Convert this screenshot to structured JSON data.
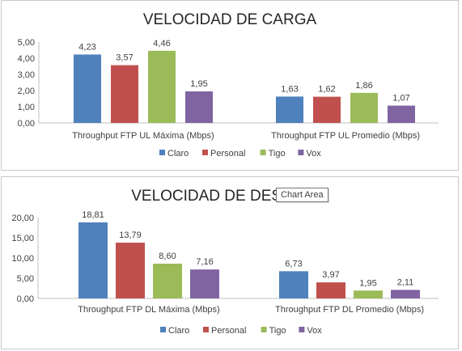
{
  "chart_data": [
    {
      "type": "bar",
      "title": "VELOCIDAD DE CARGA",
      "categories": [
        "Throughput FTP UL Máxima (Mbps)",
        "Throughput FTP UL Promedio (Mbps)"
      ],
      "series": [
        {
          "name": "Claro",
          "values": [
            4.23,
            1.63
          ],
          "labels": [
            "4,23",
            "1,63"
          ],
          "color": "#4f81bd"
        },
        {
          "name": "Personal",
          "values": [
            3.57,
            1.62
          ],
          "labels": [
            "3,57",
            "1,62"
          ],
          "color": "#c0504d"
        },
        {
          "name": "Tigo",
          "values": [
            4.46,
            1.86
          ],
          "labels": [
            "4,46",
            "1,86"
          ],
          "color": "#9bbb59"
        },
        {
          "name": "Vox",
          "values": [
            1.95,
            1.07
          ],
          "labels": [
            "1,95",
            "1,07"
          ],
          "color": "#8064a2"
        }
      ],
      "yticks": [
        "0,00",
        "1,00",
        "2,00",
        "3,00",
        "4,00",
        "5,00"
      ],
      "ylim": [
        0,
        5
      ],
      "legend_position": "bottom",
      "grid": false
    },
    {
      "type": "bar",
      "title": "VELOCIDAD DE DESC",
      "categories": [
        "Throughput FTP DL Máxima (Mbps)",
        "Throughput FTP DL Promedio (Mbps)"
      ],
      "series": [
        {
          "name": "Claro",
          "values": [
            18.81,
            6.73
          ],
          "labels": [
            "18,81",
            "6,73"
          ],
          "color": "#4f81bd"
        },
        {
          "name": "Personal",
          "values": [
            13.79,
            3.97
          ],
          "labels": [
            "13,79",
            "3,97"
          ],
          "color": "#c0504d"
        },
        {
          "name": "Tigo",
          "values": [
            8.6,
            1.95
          ],
          "labels": [
            "8,60",
            "1,95"
          ],
          "color": "#9bbb59"
        },
        {
          "name": "Vox",
          "values": [
            7.16,
            2.11
          ],
          "labels": [
            "7,16",
            "2,11"
          ],
          "color": "#8064a2"
        }
      ],
      "yticks": [
        "0,00",
        "5,00",
        "10,00",
        "15,00",
        "20,00"
      ],
      "ylim": [
        0,
        20
      ],
      "legend_position": "bottom",
      "grid": false
    }
  ],
  "tooltip": {
    "text": "Chart Area"
  }
}
